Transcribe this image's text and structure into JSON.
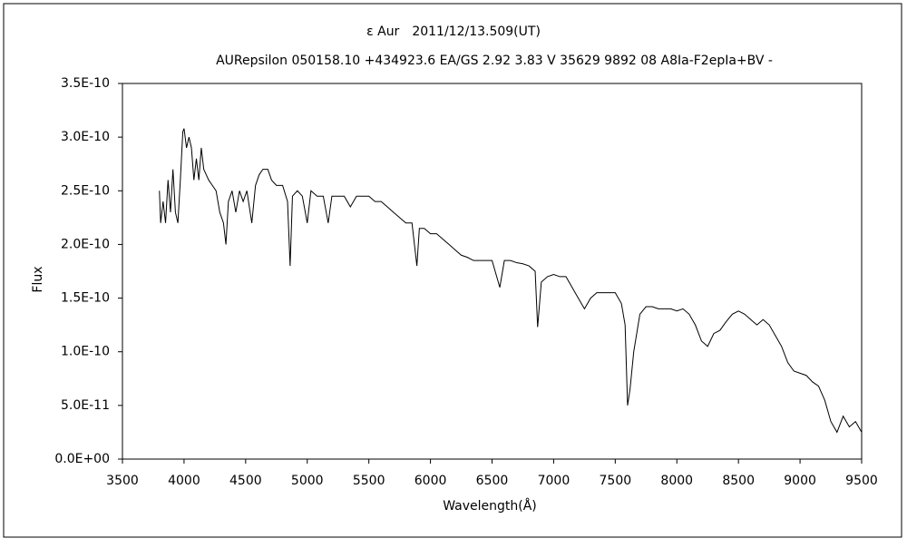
{
  "chart_data": {
    "type": "line",
    "title": "ε Aur　2011/12/13.509(UT)",
    "subtitle": "AURepsilon 050158.10 +434923.6 EA/GS 2.92 3.83 V 35629 9892 08 A8Ia-F2epIa+BV -",
    "x_label": "Wavelength(Å)",
    "y_label": "Flux",
    "xlim": [
      3500,
      9500
    ],
    "xticks": [
      3500,
      4000,
      4500,
      5000,
      5500,
      6000,
      6500,
      7000,
      7500,
      8000,
      8500,
      9000,
      9500
    ],
    "ylim": [
      0,
      3.5e-10
    ],
    "yticks": [
      {
        "value": 0,
        "label": "0.0E+00"
      },
      {
        "value": 5e-11,
        "label": "5.0E-11"
      },
      {
        "value": 1e-10,
        "label": "1.0E-10"
      },
      {
        "value": 1.5e-10,
        "label": "1.5E-10"
      },
      {
        "value": 2e-10,
        "label": "2.0E-10"
      },
      {
        "value": 2.5e-10,
        "label": "2.5E-10"
      },
      {
        "value": 3e-10,
        "label": "3.0E-10"
      },
      {
        "value": 3.5e-10,
        "label": "3.5E-10"
      }
    ],
    "grid": false,
    "x": [
      3800,
      3810,
      3830,
      3850,
      3870,
      3890,
      3910,
      3930,
      3950,
      3970,
      3990,
      4000,
      4020,
      4040,
      4060,
      4080,
      4100,
      4120,
      4140,
      4160,
      4180,
      4200,
      4230,
      4260,
      4290,
      4320,
      4340,
      4360,
      4390,
      4420,
      4450,
      4480,
      4510,
      4550,
      4580,
      4610,
      4640,
      4680,
      4710,
      4750,
      4800,
      4840,
      4861,
      4880,
      4920,
      4960,
      5000,
      5030,
      5080,
      5130,
      5170,
      5200,
      5250,
      5300,
      5350,
      5400,
      5450,
      5500,
      5550,
      5600,
      5650,
      5700,
      5750,
      5800,
      5850,
      5890,
      5910,
      5950,
      6000,
      6050,
      6100,
      6150,
      6200,
      6250,
      6300,
      6350,
      6400,
      6450,
      6500,
      6563,
      6600,
      6650,
      6700,
      6750,
      6800,
      6850,
      6870,
      6900,
      6950,
      7000,
      7050,
      7100,
      7150,
      7200,
      7250,
      7300,
      7350,
      7400,
      7450,
      7500,
      7550,
      7580,
      7600,
      7620,
      7650,
      7700,
      7750,
      7800,
      7850,
      7900,
      7950,
      8000,
      8050,
      8100,
      8150,
      8200,
      8250,
      8300,
      8350,
      8400,
      8450,
      8500,
      8550,
      8600,
      8650,
      8700,
      8750,
      8800,
      8850,
      8900,
      8950,
      9000,
      9050,
      9100,
      9150,
      9200,
      9250,
      9300,
      9350,
      9400,
      9450,
      9500
    ],
    "series": [
      {
        "name": "Flux",
        "color": "#000000",
        "values": [
          2.5e-10,
          2.2e-10,
          2.4e-10,
          2.2e-10,
          2.6e-10,
          2.3e-10,
          2.7e-10,
          2.3e-10,
          2.2e-10,
          2.6e-10,
          3.05e-10,
          3.08e-10,
          2.9e-10,
          3e-10,
          2.9e-10,
          2.6e-10,
          2.8e-10,
          2.6e-10,
          2.9e-10,
          2.7e-10,
          2.65e-10,
          2.6e-10,
          2.55e-10,
          2.5e-10,
          2.3e-10,
          2.2e-10,
          2e-10,
          2.4e-10,
          2.5e-10,
          2.3e-10,
          2.5e-10,
          2.4e-10,
          2.5e-10,
          2.2e-10,
          2.55e-10,
          2.65e-10,
          2.7e-10,
          2.7e-10,
          2.6e-10,
          2.55e-10,
          2.55e-10,
          2.4e-10,
          1.8e-10,
          2.45e-10,
          2.5e-10,
          2.45e-10,
          2.2e-10,
          2.5e-10,
          2.45e-10,
          2.45e-10,
          2.2e-10,
          2.45e-10,
          2.45e-10,
          2.45e-10,
          2.35e-10,
          2.45e-10,
          2.45e-10,
          2.45e-10,
          2.4e-10,
          2.4e-10,
          2.35e-10,
          2.3e-10,
          2.25e-10,
          2.2e-10,
          2.2e-10,
          1.8e-10,
          2.15e-10,
          2.15e-10,
          2.1e-10,
          2.1e-10,
          2.05e-10,
          2e-10,
          1.95e-10,
          1.9e-10,
          1.88e-10,
          1.85e-10,
          1.85e-10,
          1.85e-10,
          1.85e-10,
          1.6e-10,
          1.85e-10,
          1.85e-10,
          1.83e-10,
          1.82e-10,
          1.8e-10,
          1.75e-10,
          1.23e-10,
          1.65e-10,
          1.7e-10,
          1.72e-10,
          1.7e-10,
          1.7e-10,
          1.6e-10,
          1.5e-10,
          1.4e-10,
          1.5e-10,
          1.55e-10,
          1.55e-10,
          1.55e-10,
          1.55e-10,
          1.45e-10,
          1.25e-10,
          5e-11,
          6.5e-11,
          1e-10,
          1.35e-10,
          1.42e-10,
          1.42e-10,
          1.4e-10,
          1.4e-10,
          1.4e-10,
          1.38e-10,
          1.4e-10,
          1.35e-10,
          1.25e-10,
          1.1e-10,
          1.05e-10,
          1.17e-10,
          1.2e-10,
          1.28e-10,
          1.35e-10,
          1.38e-10,
          1.35e-10,
          1.3e-10,
          1.25e-10,
          1.3e-10,
          1.25e-10,
          1.15e-10,
          1.05e-10,
          9e-11,
          8.2e-11,
          8e-11,
          7.8e-11,
          7.2e-11,
          6.8e-11,
          5.5e-11,
          3.5e-11,
          2.5e-11,
          4e-11,
          3e-11,
          3.5e-11,
          2.5e-11
        ]
      }
    ]
  }
}
